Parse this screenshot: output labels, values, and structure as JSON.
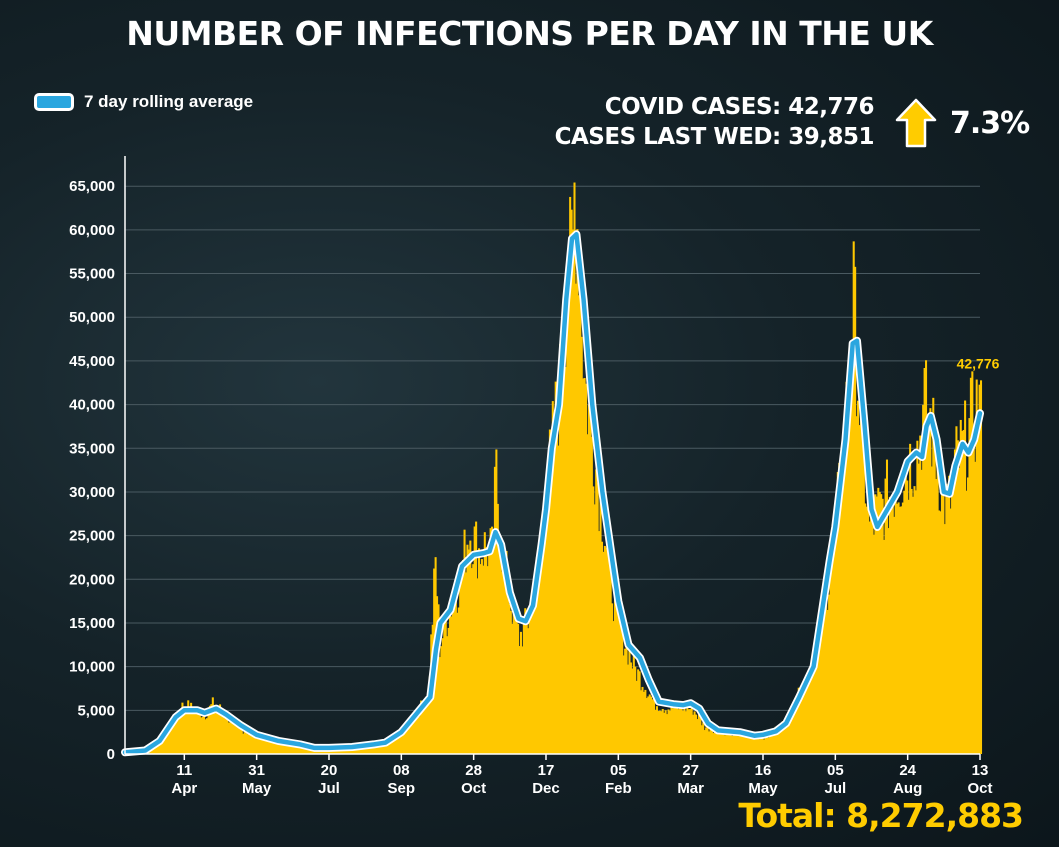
{
  "colors": {
    "bars": "#ffc800",
    "line": "#2aa6df",
    "line_outline": "#ffffff",
    "accent": "#ffcc00",
    "background": "#152329"
  },
  "header": {
    "cases_line": "COVID CASES: 42,776",
    "last_wed_line": "CASES LAST WED: 39,851",
    "change_pct": "7.3%",
    "arrow_icon": "up-arrow-icon"
  },
  "footer": {
    "total": "Total: 8,272,883"
  },
  "chart_data": {
    "type": "bar",
    "title": "NUMBER OF INFECTIONS PER DAY IN THE UK",
    "legend": {
      "label": "7 day rolling average",
      "position": "top-left"
    },
    "ylim": [
      0,
      68000
    ],
    "grid": true,
    "y_ticks": [
      0,
      5000,
      10000,
      15000,
      20000,
      25000,
      30000,
      35000,
      40000,
      45000,
      50000,
      55000,
      60000,
      65000
    ],
    "y_tick_labels": [
      "0",
      "5,000",
      "10,000",
      "15,000",
      "20,000",
      "25,000",
      "30,000",
      "35,000",
      "40,000",
      "45,000",
      "50,000",
      "55,000",
      "60,000",
      "65,000"
    ],
    "x_range": [
      "2020-03-01",
      "2021-10-13"
    ],
    "x_ticks": [
      {
        "date": "2020-04-11",
        "day": "11",
        "month": "Apr"
      },
      {
        "date": "2020-05-31",
        "day": "31",
        "month": "May"
      },
      {
        "date": "2020-07-20",
        "day": "20",
        "month": "Jul"
      },
      {
        "date": "2020-09-08",
        "day": "08",
        "month": "Sep"
      },
      {
        "date": "2020-10-28",
        "day": "28",
        "month": "Oct"
      },
      {
        "date": "2020-12-17",
        "day": "17",
        "month": "Dec"
      },
      {
        "date": "2021-02-05",
        "day": "05",
        "month": "Feb"
      },
      {
        "date": "2021-03-27",
        "day": "27",
        "month": "Mar"
      },
      {
        "date": "2021-05-16",
        "day": "16",
        "month": "May"
      },
      {
        "date": "2021-07-05",
        "day": "05",
        "month": "Jul"
      },
      {
        "date": "2021-08-24",
        "day": "24",
        "month": "Aug"
      },
      {
        "date": "2021-10-13",
        "day": "13",
        "month": "Oct"
      }
    ],
    "series": [
      {
        "name": "7 day rolling average",
        "type": "line",
        "points": [
          [
            "2020-03-01",
            200
          ],
          [
            "2020-03-15",
            400
          ],
          [
            "2020-03-25",
            1500
          ],
          [
            "2020-04-05",
            4200
          ],
          [
            "2020-04-11",
            5000
          ],
          [
            "2020-04-20",
            5000
          ],
          [
            "2020-04-25",
            4700
          ],
          [
            "2020-05-03",
            5200
          ],
          [
            "2020-05-10",
            4500
          ],
          [
            "2020-05-20",
            3300
          ],
          [
            "2020-05-31",
            2200
          ],
          [
            "2020-06-15",
            1500
          ],
          [
            "2020-06-30",
            1100
          ],
          [
            "2020-07-10",
            700
          ],
          [
            "2020-07-20",
            700
          ],
          [
            "2020-08-05",
            800
          ],
          [
            "2020-08-20",
            1100
          ],
          [
            "2020-08-28",
            1300
          ],
          [
            "2020-09-08",
            2500
          ],
          [
            "2020-09-18",
            4500
          ],
          [
            "2020-09-28",
            6500
          ],
          [
            "2020-10-02",
            12000
          ],
          [
            "2020-10-05",
            15000
          ],
          [
            "2020-10-12",
            16500
          ],
          [
            "2020-10-20",
            21500
          ],
          [
            "2020-10-28",
            22800
          ],
          [
            "2020-11-04",
            23000
          ],
          [
            "2020-11-08",
            23200
          ],
          [
            "2020-11-12",
            25400
          ],
          [
            "2020-11-16",
            24000
          ],
          [
            "2020-11-22",
            18500
          ],
          [
            "2020-11-28",
            15500
          ],
          [
            "2020-12-03",
            15200
          ],
          [
            "2020-12-08",
            17000
          ],
          [
            "2020-12-14",
            24000
          ],
          [
            "2020-12-17",
            28000
          ],
          [
            "2020-12-21",
            35000
          ],
          [
            "2020-12-26",
            40000
          ],
          [
            "2020-12-31",
            52000
          ],
          [
            "2021-01-04",
            59000
          ],
          [
            "2021-01-07",
            59500
          ],
          [
            "2021-01-12",
            52000
          ],
          [
            "2021-01-18",
            40000
          ],
          [
            "2021-01-25",
            30000
          ],
          [
            "2021-02-01",
            22000
          ],
          [
            "2021-02-05",
            17500
          ],
          [
            "2021-02-12",
            12500
          ],
          [
            "2021-02-20",
            11000
          ],
          [
            "2021-02-26",
            8500
          ],
          [
            "2021-03-05",
            6000
          ],
          [
            "2021-03-15",
            5700
          ],
          [
            "2021-03-22",
            5600
          ],
          [
            "2021-03-27",
            5800
          ],
          [
            "2021-04-02",
            5200
          ],
          [
            "2021-04-08",
            3500
          ],
          [
            "2021-04-15",
            2700
          ],
          [
            "2021-04-30",
            2500
          ],
          [
            "2021-05-10",
            2100
          ],
          [
            "2021-05-16",
            2200
          ],
          [
            "2021-05-25",
            2600
          ],
          [
            "2021-06-01",
            3500
          ],
          [
            "2021-06-10",
            6500
          ],
          [
            "2021-06-20",
            10000
          ],
          [
            "2021-07-01",
            22000
          ],
          [
            "2021-07-05",
            26000
          ],
          [
            "2021-07-12",
            36000
          ],
          [
            "2021-07-17",
            47000
          ],
          [
            "2021-07-20",
            47300
          ],
          [
            "2021-07-25",
            38000
          ],
          [
            "2021-07-30",
            28000
          ],
          [
            "2021-08-03",
            26000
          ],
          [
            "2021-08-10",
            28000
          ],
          [
            "2021-08-17",
            30000
          ],
          [
            "2021-08-24",
            33500
          ],
          [
            "2021-08-30",
            34500
          ],
          [
            "2021-09-03",
            34000
          ],
          [
            "2021-09-06",
            37500
          ],
          [
            "2021-09-09",
            38700
          ],
          [
            "2021-09-13",
            36000
          ],
          [
            "2021-09-18",
            30000
          ],
          [
            "2021-09-22",
            29800
          ],
          [
            "2021-09-26",
            33000
          ],
          [
            "2021-10-01",
            35500
          ],
          [
            "2021-10-05",
            34500
          ],
          [
            "2021-10-09",
            36000
          ],
          [
            "2021-10-13",
            39000
          ]
        ]
      },
      {
        "name": "",
        "type": "bar",
        "note_points": "daily cases, estimated from bar heights",
        "points": [
          [
            "2020-03-01",
            50
          ],
          [
            "2020-03-15",
            300
          ],
          [
            "2020-03-25",
            1800
          ],
          [
            "2020-04-05",
            4500
          ],
          [
            "2020-04-10",
            6000
          ],
          [
            "2020-04-18",
            5200
          ],
          [
            "2020-04-25",
            4800
          ],
          [
            "2020-05-01",
            6200
          ],
          [
            "2020-05-08",
            4800
          ],
          [
            "2020-05-18",
            3100
          ],
          [
            "2020-05-31",
            2100
          ],
          [
            "2020-06-15",
            1300
          ],
          [
            "2020-06-30",
            900
          ],
          [
            "2020-07-15",
            650
          ],
          [
            "2020-07-30",
            750
          ],
          [
            "2020-08-15",
            1000
          ],
          [
            "2020-08-30",
            1400
          ],
          [
            "2020-09-08",
            2800
          ],
          [
            "2020-09-18",
            4800
          ],
          [
            "2020-09-26",
            7000
          ],
          [
            "2020-10-01",
            23000
          ],
          [
            "2020-10-04",
            13000
          ],
          [
            "2020-10-10",
            17000
          ],
          [
            "2020-10-18",
            21000
          ],
          [
            "2020-10-24",
            27000
          ],
          [
            "2020-10-31",
            24500
          ],
          [
            "2020-11-05",
            25000
          ],
          [
            "2020-11-09",
            24000
          ],
          [
            "2020-11-12",
            33500
          ],
          [
            "2020-11-15",
            26000
          ],
          [
            "2020-11-21",
            19000
          ],
          [
            "2020-11-28",
            14000
          ],
          [
            "2020-12-04",
            16000
          ],
          [
            "2020-12-10",
            21500
          ],
          [
            "2020-12-16",
            30000
          ],
          [
            "2020-12-22",
            39000
          ],
          [
            "2020-12-26",
            44000
          ],
          [
            "2020-12-29",
            53000
          ],
          [
            "2021-01-01",
            57000
          ],
          [
            "2021-01-04",
            61000
          ],
          [
            "2021-01-05",
            68000
          ],
          [
            "2021-01-08",
            62000
          ],
          [
            "2021-01-12",
            45000
          ],
          [
            "2021-01-18",
            37000
          ],
          [
            "2021-01-25",
            28000
          ],
          [
            "2021-02-01",
            19000
          ],
          [
            "2021-02-08",
            14000
          ],
          [
            "2021-02-15",
            10500
          ],
          [
            "2021-02-22",
            8500
          ],
          [
            "2021-03-01",
            6200
          ],
          [
            "2021-03-10",
            5500
          ],
          [
            "2021-03-20",
            5700
          ],
          [
            "2021-03-28",
            5400
          ],
          [
            "2021-04-05",
            3300
          ],
          [
            "2021-04-15",
            2800
          ],
          [
            "2021-04-30",
            2300
          ],
          [
            "2021-05-16",
            2000
          ],
          [
            "2021-05-28",
            3300
          ],
          [
            "2021-06-07",
            6000
          ],
          [
            "2021-06-17",
            10500
          ],
          [
            "2021-06-27",
            18000
          ],
          [
            "2021-07-05",
            28000
          ],
          [
            "2021-07-10",
            36000
          ],
          [
            "2021-07-14",
            46000
          ],
          [
            "2021-07-17",
            54500
          ],
          [
            "2021-07-22",
            39000
          ],
          [
            "2021-07-28",
            27500
          ],
          [
            "2021-08-03",
            29000
          ],
          [
            "2021-08-10",
            31000
          ],
          [
            "2021-08-17",
            33000
          ],
          [
            "2021-08-24",
            35000
          ],
          [
            "2021-08-31",
            37000
          ],
          [
            "2021-09-04",
            42000
          ],
          [
            "2021-09-08",
            40000
          ],
          [
            "2021-09-14",
            34000
          ],
          [
            "2021-09-20",
            29000
          ],
          [
            "2021-09-26",
            35000
          ],
          [
            "2021-10-02",
            37000
          ],
          [
            "2021-10-07",
            40000
          ],
          [
            "2021-10-13",
            42776
          ]
        ]
      }
    ],
    "annotations": [
      {
        "date": "2021-10-13",
        "value": 42776,
        "label": "42,776"
      }
    ]
  }
}
